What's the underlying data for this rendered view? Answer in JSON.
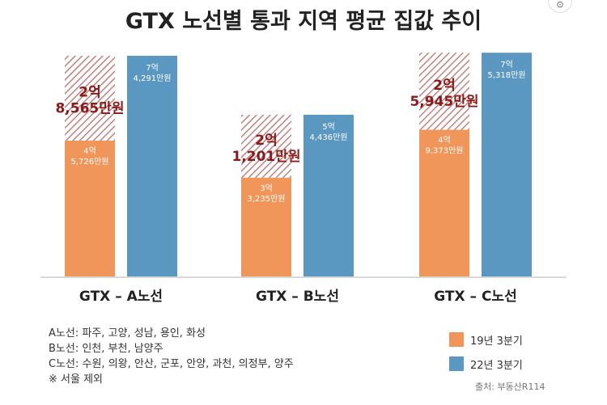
{
  "title": "GTX 노선별 통과 지역 평균 집값 추이",
  "colors": {
    "series_2019": "#f0965a",
    "series_2022": "#5a98c2",
    "increase_text": "#8b1a1a",
    "hatch": "#b86b6b"
  },
  "chart_data": {
    "type": "bar",
    "title": "GTX 노선별 통과 지역 평균 집값 추이",
    "unit": "만원",
    "categories": [
      "GTX – A노선",
      "GTX – B노선",
      "GTX – C노선"
    ],
    "series": [
      {
        "name": "19년 3분기",
        "values": [
          45726,
          33235,
          49373
        ],
        "labels": [
          [
            "4억",
            "5,726만원"
          ],
          [
            "3억",
            "3,235만원"
          ],
          [
            "4억",
            "9,373만원"
          ]
        ]
      },
      {
        "name": "22년 3분기",
        "values": [
          74291,
          54436,
          75318
        ],
        "labels": [
          [
            "7억",
            "4,291만원"
          ],
          [
            "5억",
            "4,436만원"
          ],
          [
            "7억",
            "5,318만원"
          ]
        ]
      }
    ],
    "increase": {
      "values": [
        28565,
        21201,
        25945
      ],
      "labels": [
        [
          "2억",
          "8,565만원"
        ],
        [
          "2억",
          "1,201만원"
        ],
        [
          "2억",
          "5,945만원"
        ]
      ]
    },
    "ylim": [
      0,
      80000
    ],
    "grid": false,
    "legend_position": "bottom-right"
  },
  "notes": [
    "A노선: 파주, 고양, 성남, 용인, 화성",
    "B노선: 인천, 부천, 남양주",
    "C노선: 수원, 의왕, 안산, 군포, 안양, 과천, 의정부, 양주",
    "※ 서울 제외"
  ],
  "source": "출처: 부동산R114"
}
